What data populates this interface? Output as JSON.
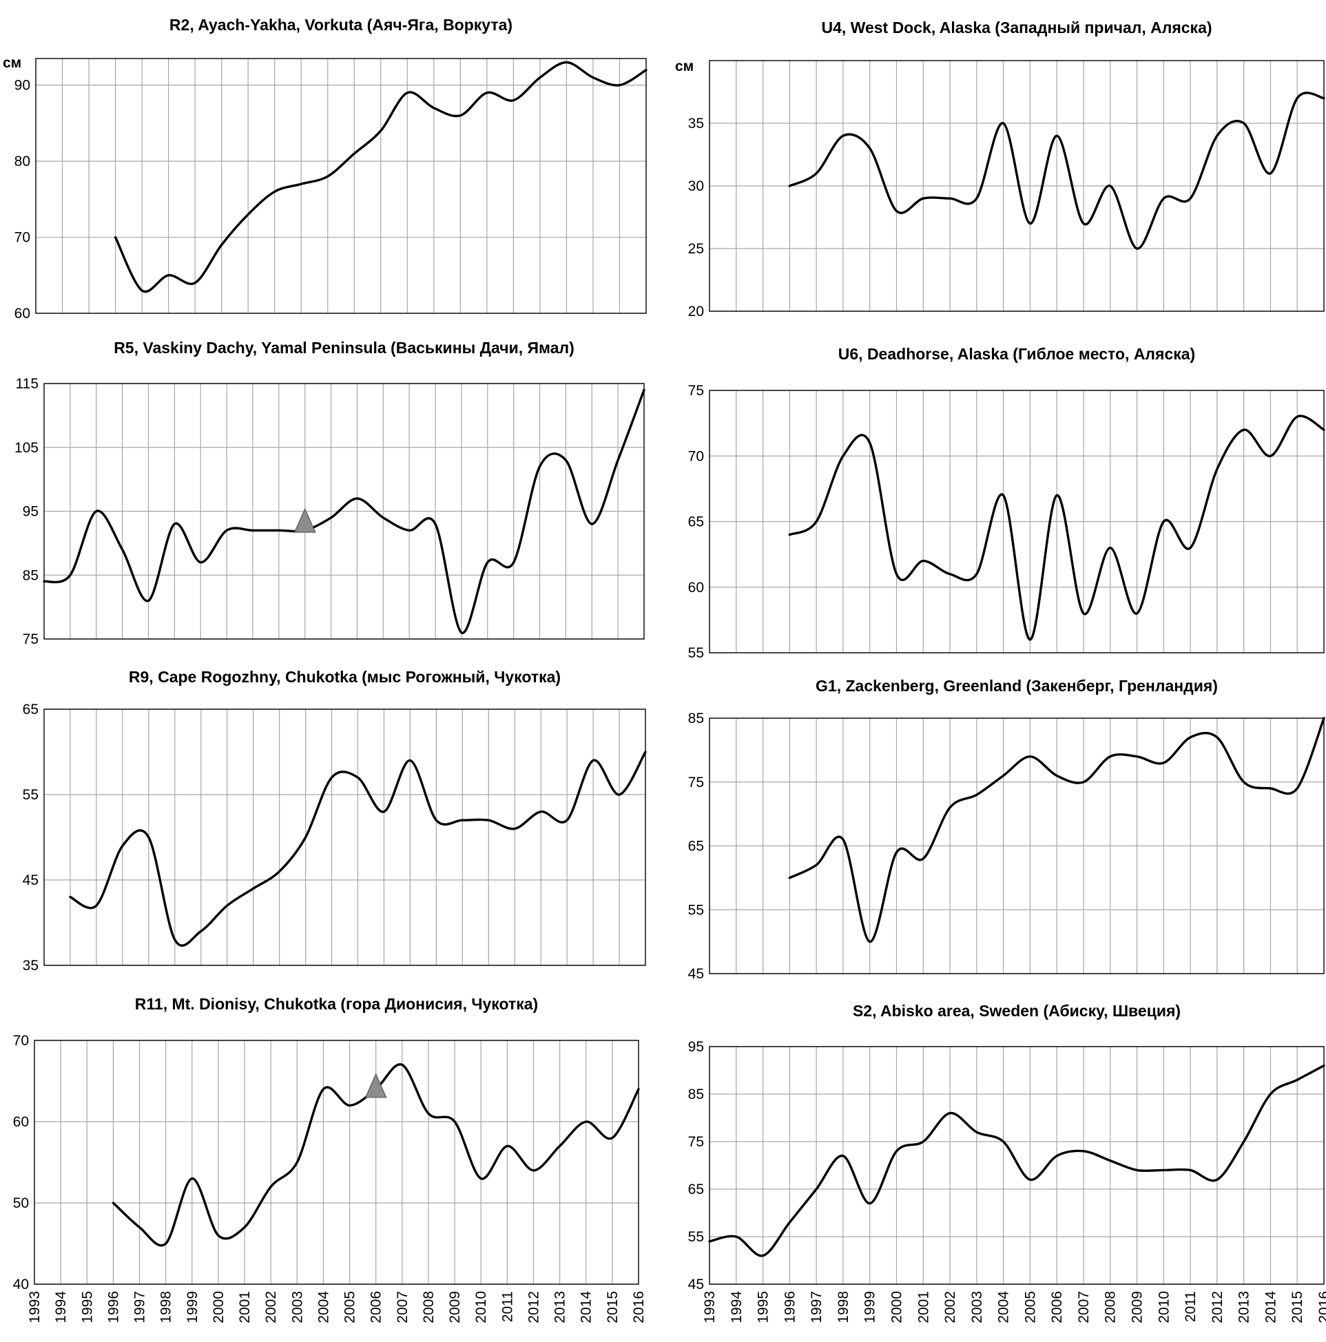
{
  "chart_data": [
    {
      "id": "r2",
      "type": "line",
      "title": "R2, Ayach-Yakha, Vorkuta (Аяч-Яга, Воркута)",
      "unit": "см",
      "ylim": [
        60,
        93.5
      ],
      "yticks": [
        60,
        70,
        80,
        90
      ],
      "xlim": [
        1993,
        2016
      ],
      "grid": true,
      "x": [
        1996,
        1997,
        1998,
        1999,
        2000,
        2001,
        2002,
        2003,
        2004,
        2005,
        2006,
        2007,
        2008,
        2009,
        2010,
        2011,
        2012,
        2013,
        2014,
        2015,
        2016
      ],
      "values": [
        70,
        63,
        65,
        64,
        69,
        73,
        76,
        77,
        78,
        81,
        84,
        89,
        87,
        86,
        89,
        88,
        91,
        93,
        91,
        90,
        92
      ]
    },
    {
      "id": "u4",
      "type": "line",
      "title": "U4, West Dock, Alaska (Западный причал, Аляска)",
      "unit": "см",
      "ylim": [
        20,
        40
      ],
      "yticks": [
        20,
        25,
        30,
        35
      ],
      "xlim": [
        1993,
        2016
      ],
      "grid": true,
      "x": [
        1996,
        1997,
        1998,
        1999,
        2000,
        2001,
        2002,
        2003,
        2004,
        2005,
        2006,
        2007,
        2008,
        2009,
        2010,
        2011,
        2012,
        2013,
        2014,
        2015,
        2016
      ],
      "values": [
        30,
        31,
        34,
        33,
        28,
        29,
        29,
        29,
        35,
        27,
        34,
        27,
        30,
        25,
        29,
        29,
        34,
        35,
        31,
        37,
        37
      ]
    },
    {
      "id": "r5",
      "type": "line",
      "title": "R5, Vaskiny Dachy, Yamal Peninsula (Васькины Дачи, Ямал)",
      "ylim": [
        75,
        115
      ],
      "yticks": [
        75,
        85,
        95,
        105,
        115
      ],
      "xlim": [
        1993,
        2016
      ],
      "grid": true,
      "x": [
        1993,
        1994,
        1995,
        1996,
        1997,
        1998,
        1999,
        2000,
        2001,
        2002,
        2003,
        2004,
        2005,
        2006,
        2007,
        2008,
        2009,
        2010,
        2011,
        2012,
        2013,
        2014,
        2015,
        2016
      ],
      "values": [
        84,
        85,
        95,
        89,
        81,
        93,
        87,
        92,
        92,
        92,
        92,
        94,
        97,
        94,
        92,
        93,
        76,
        87,
        87,
        102,
        103,
        93,
        103,
        114
      ],
      "markers": [
        {
          "x": 2003,
          "y": 93
        }
      ]
    },
    {
      "id": "u6",
      "type": "line",
      "title": "U6, Deadhorse, Alaska (Гиблое место, Аляска)",
      "ylim": [
        55,
        75
      ],
      "yticks": [
        55,
        60,
        65,
        70,
        75
      ],
      "xlim": [
        1993,
        2016
      ],
      "grid": true,
      "x": [
        1996,
        1997,
        1998,
        1999,
        2000,
        2001,
        2002,
        2003,
        2004,
        2005,
        2006,
        2007,
        2008,
        2009,
        2010,
        2011,
        2012,
        2013,
        2014,
        2015,
        2016
      ],
      "values": [
        64,
        65,
        70,
        71,
        61,
        62,
        61,
        61,
        67,
        56,
        67,
        58,
        63,
        58,
        65,
        63,
        69,
        72,
        70,
        73,
        72
      ]
    },
    {
      "id": "r9",
      "type": "line",
      "title": "R9, Cape Rogozhny, Chukotka (мыс Рогожный, Чукотка)",
      "ylim": [
        35,
        65
      ],
      "yticks": [
        35,
        45,
        55,
        65
      ],
      "xlim": [
        1993,
        2016
      ],
      "grid": true,
      "x": [
        1994,
        1995,
        1996,
        1997,
        1998,
        1999,
        2000,
        2001,
        2002,
        2003,
        2004,
        2005,
        2006,
        2007,
        2008,
        2009,
        2010,
        2011,
        2012,
        2013,
        2014,
        2015,
        2016
      ],
      "values": [
        43,
        42,
        49,
        50,
        38,
        39,
        42,
        44,
        46,
        50,
        57,
        57,
        53,
        59,
        52,
        52,
        52,
        51,
        53,
        52,
        59,
        55,
        60
      ]
    },
    {
      "id": "g1",
      "type": "line",
      "title": "G1, Zackenberg, Greenland (Закенберг, Гренландия)",
      "ylim": [
        45,
        85
      ],
      "yticks": [
        45,
        55,
        65,
        75,
        85
      ],
      "xlim": [
        1993,
        2016
      ],
      "grid": true,
      "x": [
        1996,
        1997,
        1998,
        1999,
        2000,
        2001,
        2002,
        2003,
        2004,
        2005,
        2006,
        2007,
        2008,
        2009,
        2010,
        2011,
        2012,
        2013,
        2014,
        2015,
        2016
      ],
      "values": [
        60,
        62,
        66,
        50,
        64,
        63,
        71,
        73,
        76,
        79,
        76,
        75,
        79,
        79,
        78,
        82,
        82,
        75,
        74,
        74,
        85
      ]
    },
    {
      "id": "r11",
      "type": "line",
      "title": "R11, Mt. Dionisy, Chukotka (гора Дионисия, Чукотка)",
      "ylim": [
        40,
        70
      ],
      "yticks": [
        40,
        50,
        60,
        70
      ],
      "xlim": [
        1993,
        2016
      ],
      "grid": true,
      "x": [
        1996,
        1997,
        1998,
        1999,
        2000,
        2001,
        2002,
        2003,
        2004,
        2005,
        2006,
        2007,
        2008,
        2009,
        2010,
        2011,
        2012,
        2013,
        2014,
        2015,
        2016
      ],
      "values": [
        50,
        47,
        45,
        53,
        46,
        47,
        52,
        55,
        64,
        62,
        64,
        67,
        61,
        60,
        53,
        57,
        54,
        57,
        60,
        58,
        64
      ],
      "markers": [
        {
          "x": 2006,
          "y": 64
        }
      ]
    },
    {
      "id": "s2",
      "type": "line",
      "title": "S2, Abisko area, Sweden (Абиску, Швеция)",
      "ylim": [
        45,
        95
      ],
      "yticks": [
        45,
        55,
        65,
        75,
        85,
        95
      ],
      "xlim": [
        1993,
        2016
      ],
      "grid": true,
      "x": [
        1993,
        1994,
        1995,
        1996,
        1997,
        1998,
        1999,
        2000,
        2001,
        2002,
        2003,
        2004,
        2005,
        2006,
        2007,
        2008,
        2009,
        2010,
        2011,
        2012,
        2013,
        2014,
        2015,
        2016
      ],
      "values": [
        54,
        55,
        51,
        58,
        65,
        72,
        62,
        73,
        75,
        81,
        77,
        75,
        67,
        72,
        73,
        71,
        69,
        69,
        69,
        67,
        75,
        85,
        88,
        91
      ]
    }
  ],
  "x_tick_labels": [
    "1993",
    "1994",
    "1995",
    "1996",
    "1997",
    "1998",
    "1999",
    "2000",
    "2001",
    "2002",
    "2003",
    "2004",
    "2005",
    "2006",
    "2007",
    "2008",
    "2009",
    "2010",
    "2011",
    "2012",
    "2013",
    "2014",
    "2015",
    "2016"
  ]
}
